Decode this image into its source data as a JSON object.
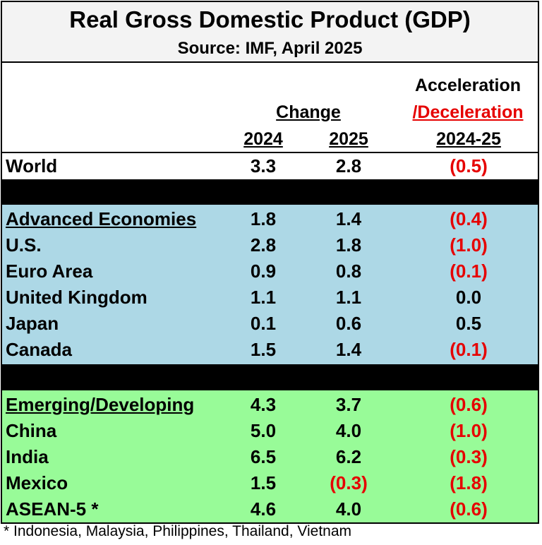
{
  "title": "Real Gross Domestic Product (GDP)",
  "subtitle": "Source:  IMF, April 2025",
  "headers": {
    "change": "Change",
    "year1": "2024",
    "year2": "2025",
    "accel_line1": "Acceleration",
    "accel_line2": "/Deceleration",
    "accel_line3": "2024-25"
  },
  "colors": {
    "negative": "#e60000",
    "advanced_bg": "#add8e6",
    "emerging_bg": "#98fb98",
    "separator": "#000000"
  },
  "world": {
    "label": "World",
    "y2024": "3.3",
    "y2025": "2.8",
    "accel": "(0.5)"
  },
  "advanced": [
    {
      "label": "Advanced Economies",
      "y2024": "1.8",
      "y2025": "1.4",
      "accel": "(0.4)"
    },
    {
      "label": "U.S.",
      "y2024": "2.8",
      "y2025": "1.8",
      "accel": "(1.0)"
    },
    {
      "label": "Euro Area",
      "y2024": "0.9",
      "y2025": "0.8",
      "accel": "(0.1)"
    },
    {
      "label": "United Kingdom",
      "y2024": "1.1",
      "y2025": "1.1",
      "accel": "0.0"
    },
    {
      "label": "Japan",
      "y2024": "0.1",
      "y2025": "0.6",
      "accel": "0.5"
    },
    {
      "label": "Canada",
      "y2024": "1.5",
      "y2025": "1.4",
      "accel": "(0.1)"
    }
  ],
  "emerging": [
    {
      "label": "Emerging/Developing",
      "y2024": "4.3",
      "y2025": "3.7",
      "accel": "(0.6)"
    },
    {
      "label": "China",
      "y2024": "5.0",
      "y2025": "4.0",
      "accel": "(1.0)"
    },
    {
      "label": "India",
      "y2024": "6.5",
      "y2025": "6.2",
      "accel": "(0.3)"
    },
    {
      "label": "Mexico",
      "y2024": "1.5",
      "y2025": "(0.3)",
      "accel": "(1.8)"
    },
    {
      "label": "ASEAN-5 *",
      "y2024": "4.6",
      "y2025": "4.0",
      "accel": "(0.6)"
    }
  ],
  "footnote": "* Indonesia, Malaysia, Philippines, Thailand, Vietnam"
}
